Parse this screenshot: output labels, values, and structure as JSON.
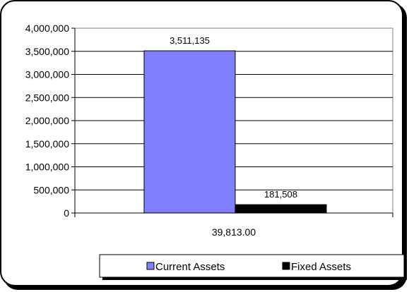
{
  "chart_data": {
    "type": "bar",
    "categories": [
      "39,813.00"
    ],
    "series": [
      {
        "name": "Current Assets",
        "values": [
          3511135
        ],
        "label": "3,511,135",
        "color": "#8080ff"
      },
      {
        "name": "Fixed Assets",
        "values": [
          181508
        ],
        "label": "181,508",
        "color": "#000000"
      }
    ],
    "title": "",
    "xlabel": "",
    "ylabel": "",
    "ylim": [
      0,
      4000000
    ],
    "yticks": [
      {
        "value": 0,
        "label": "0"
      },
      {
        "value": 500000,
        "label": "500,000"
      },
      {
        "value": 1000000,
        "label": "1,000,000"
      },
      {
        "value": 1500000,
        "label": "1,500,000"
      },
      {
        "value": 2000000,
        "label": "2,000,000"
      },
      {
        "value": 2500000,
        "label": "2,500,000"
      },
      {
        "value": 3000000,
        "label": "3,000,000"
      },
      {
        "value": 3500000,
        "label": "3,500,000"
      },
      {
        "value": 4000000,
        "label": "4,000,000"
      }
    ],
    "grid": true,
    "legend_position": "bottom-right"
  }
}
